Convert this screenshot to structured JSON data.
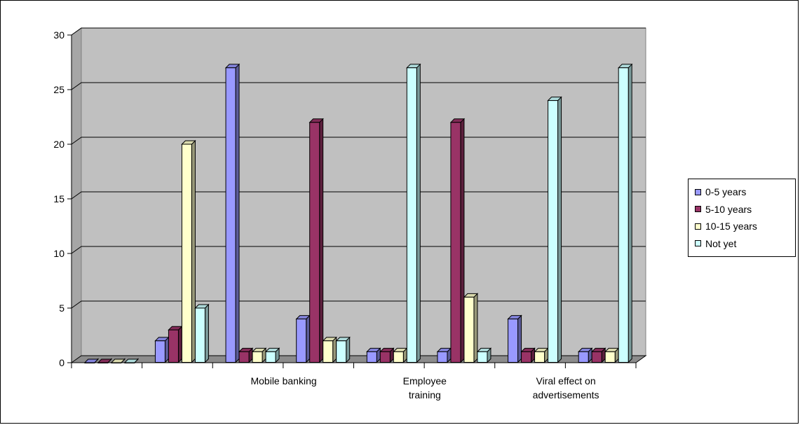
{
  "chart_data": {
    "type": "bar",
    "style": "3d-clustered-column",
    "categories": [
      "",
      "",
      "Mobile banking",
      "",
      "Employee training",
      "",
      "Viral  effect on advertisements",
      ""
    ],
    "category_label_lines": [
      [],
      [],
      [
        "Mobile banking"
      ],
      [],
      [
        "Employee",
        "training"
      ],
      [],
      [
        "Viral  effect on",
        "advertisements"
      ],
      []
    ],
    "series": [
      {
        "name": "0-5 years",
        "color": "#9999ff",
        "values": [
          0,
          2,
          27,
          4,
          1,
          1,
          4,
          1
        ]
      },
      {
        "name": "5-10 years",
        "color": "#993366",
        "values": [
          0,
          3,
          1,
          22,
          1,
          22,
          1,
          1
        ]
      },
      {
        "name": "10-15 years",
        "color": "#ffffcc",
        "values": [
          0,
          20,
          1,
          2,
          1,
          6,
          1,
          1
        ]
      },
      {
        "name": "Not yet",
        "color": "#ccffff",
        "values": [
          0,
          5,
          1,
          2,
          27,
          1,
          24,
          27
        ]
      }
    ],
    "y_ticks": [
      "0",
      "5",
      "10",
      "15",
      "20",
      "25",
      "30"
    ],
    "ylim": [
      0,
      30
    ],
    "grid": true,
    "legend_position": "right",
    "title": "",
    "xlabel": "",
    "ylabel": "",
    "plot_area_color": "#c0c0c0"
  }
}
